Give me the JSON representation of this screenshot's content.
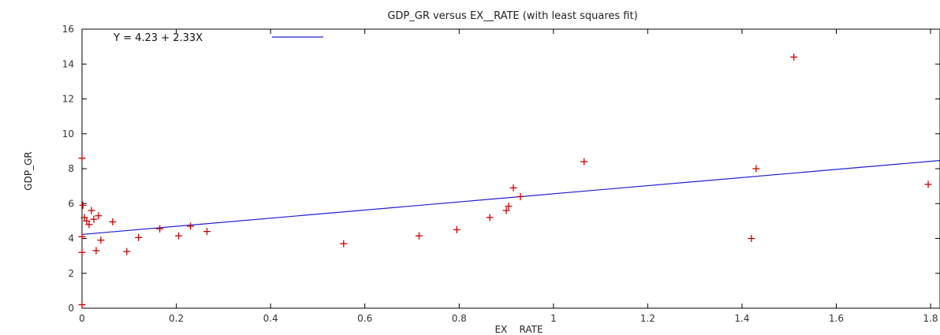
{
  "chart_data": {
    "type": "scatter",
    "title": "GDP_GR versus EX__RATE (with least squares fit)",
    "xlabel": "EX    RATE",
    "ylabel": "GDP_GR",
    "xlim": [
      0,
      1.82
    ],
    "ylim": [
      0,
      16
    ],
    "xticks": [
      0,
      0.2,
      0.4,
      0.6,
      0.8,
      1,
      1.2,
      1.4,
      1.6,
      1.8
    ],
    "xtick_labels": [
      "0",
      "0.2",
      "0.4",
      "0.6",
      "0.8",
      "1",
      "1.2",
      "1.4",
      "1.6",
      "1.8"
    ],
    "yticks": [
      0,
      2,
      4,
      6,
      8,
      10,
      12,
      14,
      16
    ],
    "ytick_labels": [
      "0",
      "2",
      "4",
      "6",
      "8",
      "10",
      "12",
      "14",
      "16"
    ],
    "grid": false,
    "legend_position": "top-left",
    "series": [
      {
        "kind": "scatter",
        "marker": "plus",
        "color": "#cc0000",
        "x": [
          0.0,
          0.0,
          0.0,
          0.0,
          0.002,
          0.005,
          0.01,
          0.015,
          0.02,
          0.025,
          0.03,
          0.035,
          0.04,
          0.065,
          0.095,
          0.12,
          0.165,
          0.205,
          0.23,
          0.265,
          0.555,
          0.715,
          0.795,
          0.865,
          0.9,
          0.905,
          0.915,
          0.93,
          1.065,
          1.42,
          1.43,
          1.51,
          1.795
        ],
        "y": [
          0.2,
          3.2,
          4.1,
          8.6,
          5.9,
          5.2,
          5.0,
          4.8,
          5.6,
          5.1,
          3.3,
          5.3,
          3.9,
          4.95,
          3.25,
          4.05,
          4.55,
          4.15,
          4.7,
          4.4,
          3.7,
          4.15,
          4.5,
          5.2,
          5.6,
          5.85,
          6.9,
          6.4,
          8.4,
          4.0,
          8.0,
          14.4,
          7.1
        ]
      },
      {
        "kind": "line",
        "name": "Y = 4.23 + 2.33X",
        "color": "#1f1fd1",
        "intercept": 4.23,
        "slope": 2.33
      }
    ]
  }
}
